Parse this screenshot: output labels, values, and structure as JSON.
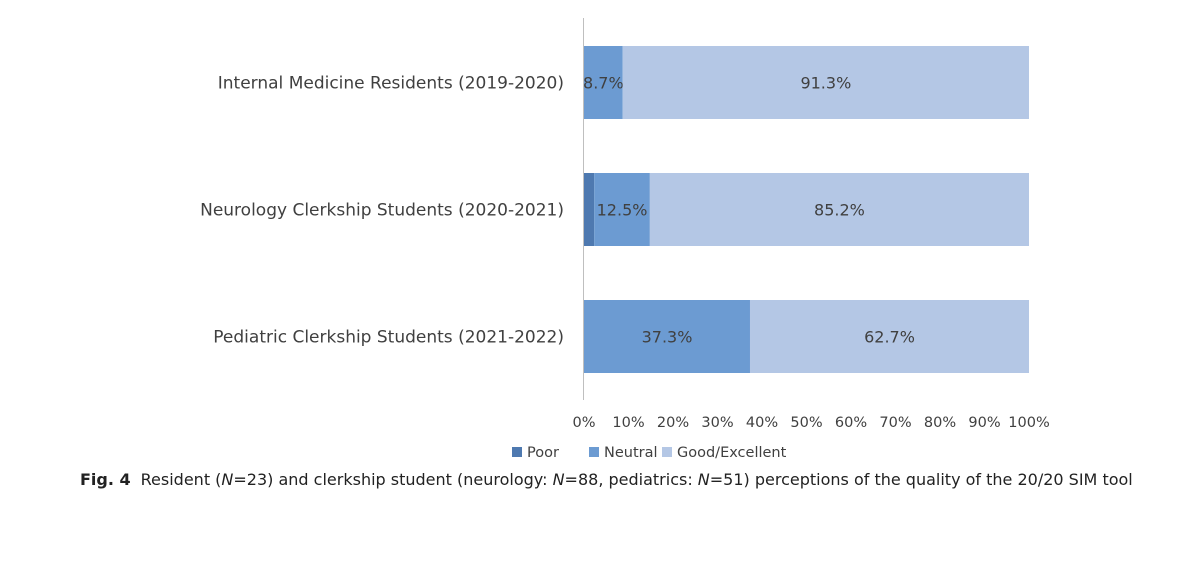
{
  "chart_data": {
    "type": "bar",
    "orientation": "horizontal",
    "stacked": true,
    "categories": [
      "Internal Medicine Residents (2019-2020)",
      "Neurology Clerkship Students (2020-2021)",
      "Pediatric Clerkship Students (2021-2022)"
    ],
    "series": [
      {
        "name": "Poor",
        "color": "#4e79b0",
        "values": [
          0,
          2.3,
          0
        ],
        "labels": [
          "",
          "",
          ""
        ]
      },
      {
        "name": "Neutral",
        "color": "#6c9bd2",
        "values": [
          8.7,
          12.5,
          37.3
        ],
        "labels": [
          "8.7%",
          "12.5%",
          "37.3%"
        ]
      },
      {
        "name": "Good/Excellent",
        "color": "#b4c7e5",
        "values": [
          91.3,
          85.2,
          62.7
        ],
        "labels": [
          "91.3%",
          "85.2%",
          "62.7%"
        ]
      }
    ],
    "xlim": [
      0,
      100
    ],
    "x_ticks": [
      "0%",
      "10%",
      "20%",
      "30%",
      "40%",
      "50%",
      "60%",
      "70%",
      "80%",
      "90%",
      "100%"
    ],
    "legend": "bottom",
    "grid": false
  },
  "caption": {
    "label": "Fig. 4",
    "parts": [
      {
        "t": "Resident (",
        "i": false
      },
      {
        "t": "N",
        "i": true
      },
      {
        "t": "=23) and clerkship student (neurology: ",
        "i": false
      },
      {
        "t": "N",
        "i": true
      },
      {
        "t": "=88, pediatrics: ",
        "i": false
      },
      {
        "t": "N",
        "i": true
      },
      {
        "t": "=51) perceptions of the quality of the 20/20 SIM tool",
        "i": false
      }
    ]
  }
}
